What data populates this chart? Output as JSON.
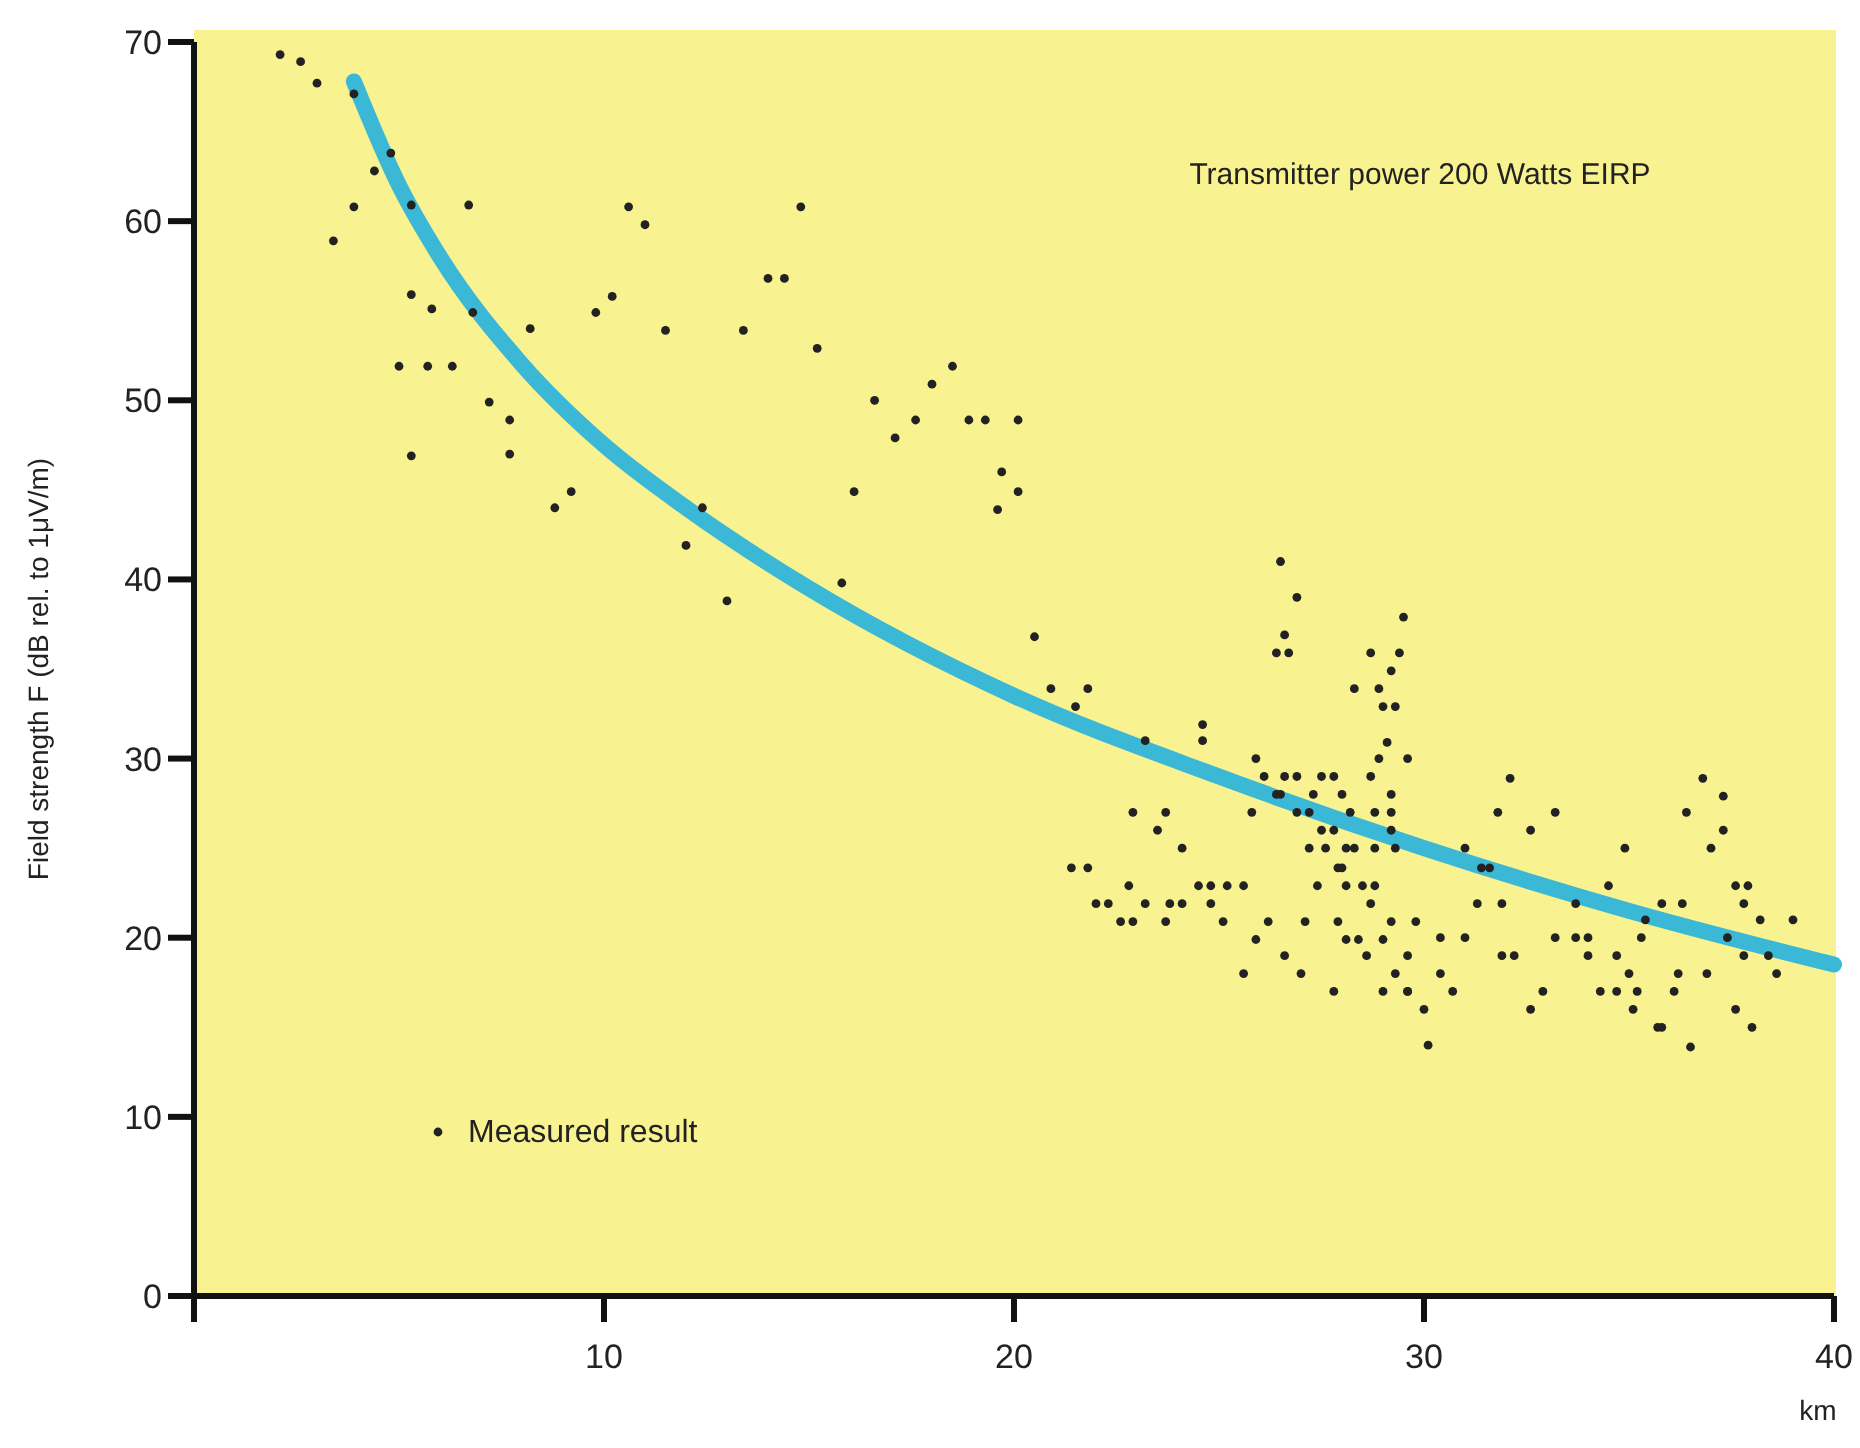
{
  "chart_data": {
    "type": "scatter",
    "xlabel": "km",
    "ylabel": "Field strength F (dB rel. to 1μV/m)",
    "xlim": [
      0,
      40
    ],
    "ylim": [
      0,
      70
    ],
    "xticks": [
      {
        "value": 0,
        "label": null
      },
      10,
      20,
      30,
      40
    ],
    "yticks": [
      0,
      10,
      20,
      30,
      40,
      50,
      60,
      70
    ],
    "grid": false,
    "legend": "bottom left",
    "annotations": [
      "Transmitter power 200 Watts EIRP"
    ],
    "series": [
      {
        "name": "Measured result",
        "type": "scatter",
        "color": "#222222",
        "marker": "circle",
        "x": [
          2.1,
          2.6,
          3.0,
          3.9,
          4.8,
          4.4,
          3.9,
          3.4,
          5.3,
          6.7,
          5.3,
          5.8,
          5.0,
          5.7,
          6.3,
          7.2,
          7.7,
          8.2,
          7.7,
          5.3,
          9.2,
          8.8,
          6.8,
          9.8,
          10.6,
          11.0,
          14.8,
          14.0,
          14.4,
          10.2,
          11.5,
          13.4,
          15.2,
          18.5,
          18.0,
          16.6,
          17.6,
          17.1,
          18.9,
          19.3,
          20.1,
          19.7,
          20.1,
          19.6,
          16.1,
          12.4,
          12.0,
          13.0,
          15.8,
          20.5,
          26.5,
          26.9,
          29.5,
          26.6,
          26.4,
          26.7,
          28.7,
          29.4,
          29.2,
          28.3,
          28.9,
          29.0,
          29.3,
          20.9,
          21.8,
          21.5,
          24.6,
          24.6,
          23.2,
          29.1,
          25.9,
          28.9,
          29.6,
          26.1,
          26.6,
          26.9,
          27.5,
          27.8,
          28.7,
          26.4,
          26.5,
          27.3,
          28.0,
          29.2,
          22.9,
          23.7,
          25.8,
          26.9,
          27.2,
          28.2,
          28.8,
          29.2,
          23.5,
          27.5,
          27.8,
          29.2,
          24.1,
          27.2,
          27.6,
          28.1,
          28.3,
          28.8,
          29.3,
          21.4,
          21.8,
          27.9,
          28.0,
          22.8,
          24.5,
          24.8,
          25.2,
          25.6,
          27.4,
          28.1,
          28.5,
          28.8,
          22.0,
          22.3,
          23.2,
          23.8,
          24.1,
          24.8,
          28.7,
          22.6,
          22.9,
          23.7,
          25.1,
          26.2,
          27.1,
          27.9,
          29.2,
          29.8,
          25.9,
          28.1,
          28.4,
          29.0,
          26.6,
          28.6,
          29.6,
          25.6,
          27.0,
          29.3,
          27.8,
          29.0,
          29.6,
          30.0,
          30.1,
          32.1,
          36.8,
          37.3,
          31.8,
          33.2,
          36.4,
          32.6,
          37.3,
          31.0,
          34.9,
          37.0,
          31.4,
          31.6,
          34.5,
          37.6,
          37.9,
          31.3,
          31.9,
          33.7,
          35.8,
          36.3,
          37.8,
          35.4,
          38.2,
          39.0,
          30.4,
          31.0,
          33.2,
          33.7,
          34.0,
          35.3,
          37.4,
          31.9,
          32.2,
          34.0,
          34.7,
          37.8,
          38.4,
          30.4,
          35.0,
          36.2,
          36.9,
          38.6,
          29.6,
          30.7,
          32.9,
          34.3,
          34.7,
          35.2,
          36.1,
          32.6,
          35.1,
          37.6,
          35.7,
          35.8,
          38.0,
          36.5
        ],
        "values": [
          69.3,
          68.9,
          67.7,
          67.1,
          63.8,
          62.8,
          60.8,
          58.9,
          60.9,
          60.9,
          55.9,
          55.1,
          51.9,
          51.9,
          51.9,
          49.9,
          48.9,
          54.0,
          47.0,
          46.9,
          44.9,
          44.0,
          54.9,
          54.9,
          60.8,
          59.8,
          60.8,
          56.8,
          56.8,
          55.8,
          53.9,
          53.9,
          52.9,
          51.9,
          50.9,
          50.0,
          48.9,
          47.9,
          48.9,
          48.9,
          48.9,
          46.0,
          44.9,
          43.9,
          44.9,
          44.0,
          41.9,
          38.8,
          39.8,
          36.8,
          41.0,
          39.0,
          37.9,
          36.9,
          35.9,
          35.9,
          35.9,
          35.9,
          34.9,
          33.9,
          33.9,
          32.9,
          32.9,
          33.9,
          33.9,
          32.9,
          31.9,
          31.0,
          31.0,
          30.9,
          30.0,
          30.0,
          30.0,
          29.0,
          29.0,
          29.0,
          29.0,
          29.0,
          29.0,
          28.0,
          28.0,
          28.0,
          28.0,
          28.0,
          27.0,
          27.0,
          27.0,
          27.0,
          27.0,
          27.0,
          27.0,
          27.0,
          26.0,
          26.0,
          26.0,
          26.0,
          25.0,
          25.0,
          25.0,
          25.0,
          25.0,
          25.0,
          25.0,
          23.9,
          23.9,
          23.9,
          23.9,
          22.9,
          22.9,
          22.9,
          22.9,
          22.9,
          22.9,
          22.9,
          22.9,
          22.9,
          21.9,
          21.9,
          21.9,
          21.9,
          21.9,
          21.9,
          21.9,
          20.9,
          20.9,
          20.9,
          20.9,
          20.9,
          20.9,
          20.9,
          20.9,
          20.9,
          19.9,
          19.9,
          19.9,
          19.9,
          19.0,
          19.0,
          19.0,
          18.0,
          18.0,
          18.0,
          17.0,
          17.0,
          17.0,
          16.0,
          14.0,
          28.9,
          28.9,
          27.9,
          27.0,
          27.0,
          27.0,
          26.0,
          26.0,
          25.0,
          25.0,
          25.0,
          23.9,
          23.9,
          22.9,
          22.9,
          22.9,
          21.9,
          21.9,
          21.9,
          21.9,
          21.9,
          21.9,
          21.0,
          21.0,
          21.0,
          20.0,
          20.0,
          20.0,
          20.0,
          20.0,
          20.0,
          20.0,
          19.0,
          19.0,
          19.0,
          19.0,
          19.0,
          19.0,
          18.0,
          18.0,
          18.0,
          18.0,
          18.0,
          17.0,
          17.0,
          17.0,
          17.0,
          17.0,
          17.0,
          17.0,
          16.0,
          16.0,
          16.0,
          15.0,
          15.0,
          15.0,
          13.9
        ]
      },
      {
        "type": "line",
        "color": "#3ab8d6",
        "marker": "none",
        "line_style": "solid",
        "x": [
          3.9,
          5,
          6,
          8,
          10,
          12,
          15,
          20,
          25,
          30,
          35,
          40
        ],
        "values": [
          67.8,
          62,
          58,
          52,
          47.5,
          44,
          39.5,
          33.5,
          29,
          25,
          21.5,
          18.5
        ]
      }
    ]
  }
}
